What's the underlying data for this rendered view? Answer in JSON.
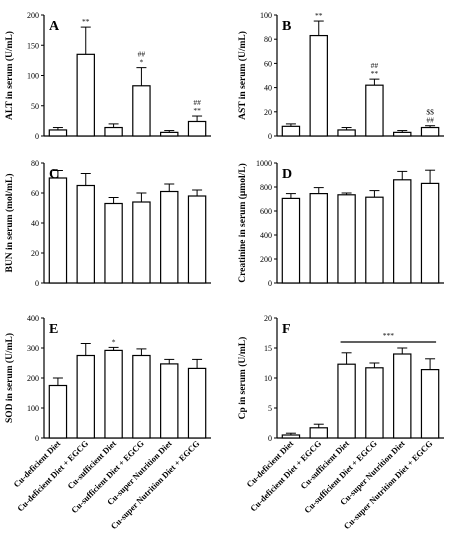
{
  "categories": [
    "Cu-deficient Diet",
    "Cu-deficient Diet + EGCG",
    "Cu-sufficient Diet",
    "Cu-sufficient Diet + EGCG",
    "Cu-super Nutrition Diet",
    "Cu-super Nutrition Diet + EGCG"
  ],
  "chart_data": [
    {
      "panel": "A",
      "type": "bar",
      "ylabel": "ALT in serum (U/mL)",
      "ylim": [
        0,
        200
      ],
      "yticks": [
        0,
        50,
        100,
        150,
        200
      ],
      "values": [
        10,
        135,
        14,
        83,
        6,
        24
      ],
      "errors": [
        4,
        45,
        6,
        30,
        3,
        9
      ],
      "annotations": [
        [],
        [
          "**"
        ],
        [],
        [
          "##",
          "*"
        ],
        [],
        [
          "##",
          "**"
        ]
      ],
      "bracket": null
    },
    {
      "panel": "B",
      "type": "bar",
      "ylabel": "AST in serum (U/mL)",
      "ylim": [
        0,
        100
      ],
      "yticks": [
        0,
        20,
        40,
        60,
        80,
        100
      ],
      "values": [
        8,
        83,
        5,
        42,
        3,
        7
      ],
      "errors": [
        2,
        12,
        2,
        5,
        1.5,
        1.5
      ],
      "annotations": [
        [],
        [
          "**"
        ],
        [],
        [
          "##",
          "**"
        ],
        [],
        [
          "$$",
          "##"
        ]
      ],
      "bracket": null
    },
    {
      "panel": "C",
      "type": "bar",
      "ylabel": "BUN in serum (mol/mL)",
      "ylim": [
        0,
        80
      ],
      "yticks": [
        0,
        20,
        40,
        60,
        80
      ],
      "values": [
        70,
        65,
        53,
        54,
        61,
        58
      ],
      "errors": [
        5,
        8,
        4,
        6,
        5,
        4
      ],
      "annotations": [
        [],
        [],
        [],
        [],
        [],
        []
      ],
      "bracket": null
    },
    {
      "panel": "D",
      "type": "bar",
      "ylabel": "Creatinine in serum (μmol/L)",
      "ylim": [
        0,
        1000
      ],
      "yticks": [
        0,
        200,
        400,
        600,
        800,
        1000
      ],
      "values": [
        705,
        745,
        735,
        715,
        860,
        830
      ],
      "errors": [
        40,
        50,
        15,
        55,
        70,
        110
      ],
      "annotations": [
        [],
        [],
        [],
        [],
        [],
        []
      ],
      "bracket": null
    },
    {
      "panel": "E",
      "type": "bar",
      "ylabel": "SOD in serum (U/mL)",
      "ylim": [
        0,
        400
      ],
      "yticks": [
        0,
        100,
        200,
        300,
        400
      ],
      "values": [
        175,
        275,
        292,
        275,
        247,
        232
      ],
      "errors": [
        25,
        40,
        10,
        22,
        15,
        30
      ],
      "annotations": [
        [],
        [],
        [
          "*"
        ],
        [],
        [],
        []
      ],
      "bracket": null
    },
    {
      "panel": "F",
      "type": "bar",
      "ylabel": "Cp in serum (U/mL)",
      "ylim": [
        0,
        20
      ],
      "yticks": [
        0,
        5,
        10,
        15,
        20
      ],
      "values": [
        0.5,
        1.7,
        12.3,
        11.7,
        14.0,
        11.4
      ],
      "errors": [
        0.3,
        0.6,
        1.9,
        0.8,
        1.0,
        1.8
      ],
      "annotations": [
        [],
        [],
        [],
        [],
        [],
        []
      ],
      "bracket": {
        "from": 2,
        "to": 5,
        "label": "***"
      }
    }
  ]
}
